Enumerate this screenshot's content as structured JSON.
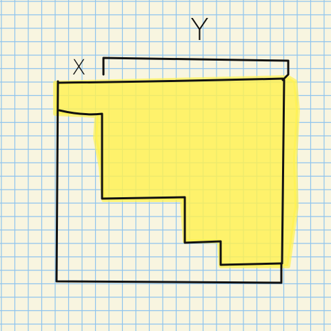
{
  "labels": {
    "x": "X",
    "y": "Y"
  },
  "colors": {
    "paper": "#f8f5e0",
    "grid": "#8ec4ee",
    "ink": "#111111",
    "highlight": "#fff250"
  }
}
